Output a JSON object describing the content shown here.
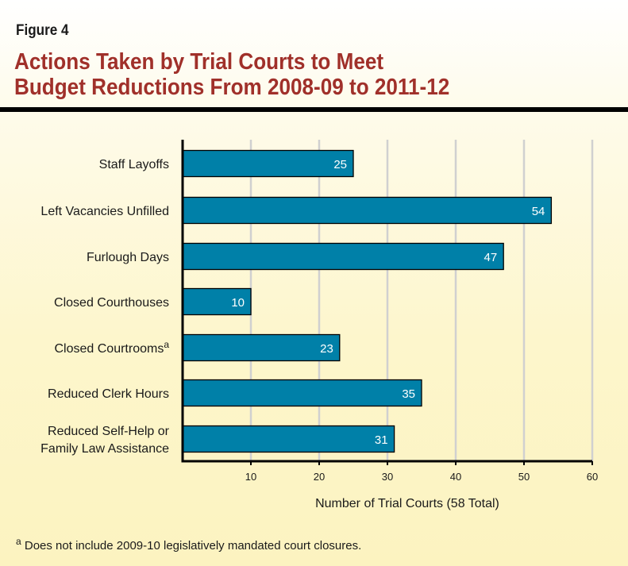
{
  "figure_label": "Figure 4",
  "title_line1": "Actions Taken by Trial Courts to Meet",
  "title_line2": "Budget Reductions From 2008-09 to 2011-12",
  "footnote": {
    "marker": "a",
    "text": "Does not include 2009-10 legislatively mandated court closures."
  },
  "colors": {
    "bar": "#0080a8",
    "title": "#a0302a",
    "grid": "#d0d0d0"
  },
  "chart_data": {
    "type": "bar",
    "orientation": "horizontal",
    "categories": [
      {
        "lines": [
          "Staff Layoffs"
        ],
        "sup": ""
      },
      {
        "lines": [
          "Left Vacancies Unfilled"
        ],
        "sup": ""
      },
      {
        "lines": [
          "Furlough Days"
        ],
        "sup": ""
      },
      {
        "lines": [
          "Closed Courthouses"
        ],
        "sup": ""
      },
      {
        "lines": [
          "Closed Courtrooms"
        ],
        "sup": "a"
      },
      {
        "lines": [
          "Reduced Clerk Hours"
        ],
        "sup": ""
      },
      {
        "lines": [
          "Reduced Self-Help or",
          "Family Law Assistance"
        ],
        "sup": ""
      }
    ],
    "values": [
      25,
      54,
      47,
      10,
      23,
      35,
      31
    ],
    "xlabel": "Number of Trial Courts (58 Total)",
    "xlim": [
      0,
      60
    ],
    "xticks": [
      "10",
      "20",
      "30",
      "40",
      "50",
      "60"
    ],
    "grid": true
  }
}
